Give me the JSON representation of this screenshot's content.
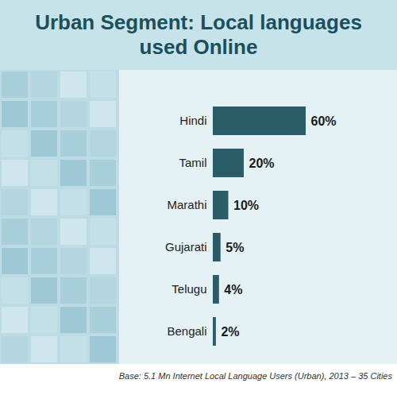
{
  "chart_data": {
    "type": "bar",
    "title": "Urban Segment: Local languages used Online",
    "categories": [
      "Hindi",
      "Tamil",
      "Marathi",
      "Gujarati",
      "Telugu",
      "Bengali"
    ],
    "values": [
      60,
      20,
      10,
      5,
      4,
      2
    ],
    "value_labels": [
      "60%",
      "20%",
      "10%",
      "5%",
      "4%",
      "2%"
    ],
    "color": "#2b5d68",
    "orientation": "horizontal",
    "data_labels": true,
    "tick_labels": "y",
    "caption": "Base: 5.1 Mn Internet Local Language Users (Urban), 2013 – 35 Cities"
  }
}
